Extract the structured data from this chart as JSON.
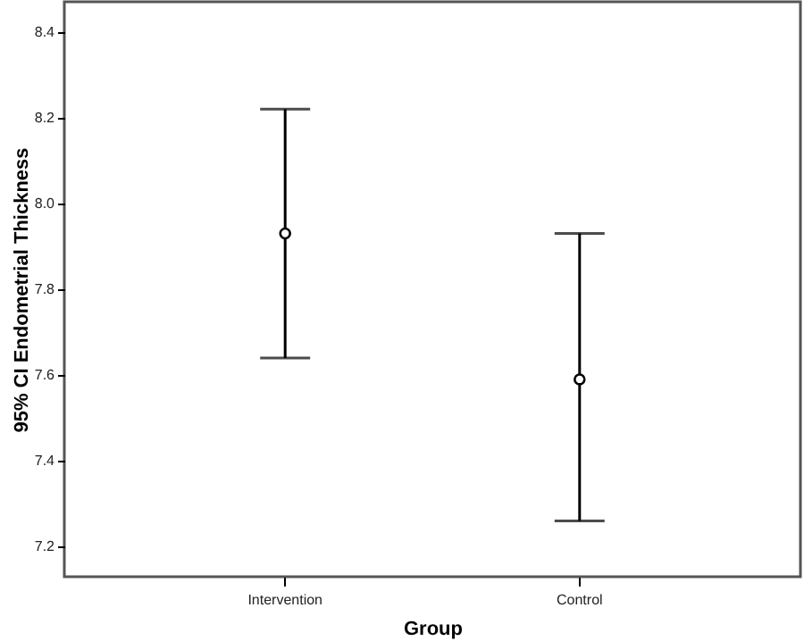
{
  "chart_data": {
    "type": "scatter",
    "xlabel": "Group",
    "ylabel": "95% CI Endometrial Thickness",
    "categories": [
      "Intervention",
      "Control"
    ],
    "series": [
      {
        "color": "#000000",
        "values": [
          7.93,
          7.59
        ],
        "errors": [
          [
            7.64,
            8.22
          ],
          [
            7.26,
            7.93
          ]
        ]
      }
    ],
    "ylim": [
      7.13,
      8.47
    ],
    "yticks": [
      7.2,
      7.4,
      7.6,
      7.8,
      {
        "value": 8,
        "label": "8.0"
      },
      8.2,
      8.4
    ],
    "grid": false,
    "marker": "circle"
  }
}
